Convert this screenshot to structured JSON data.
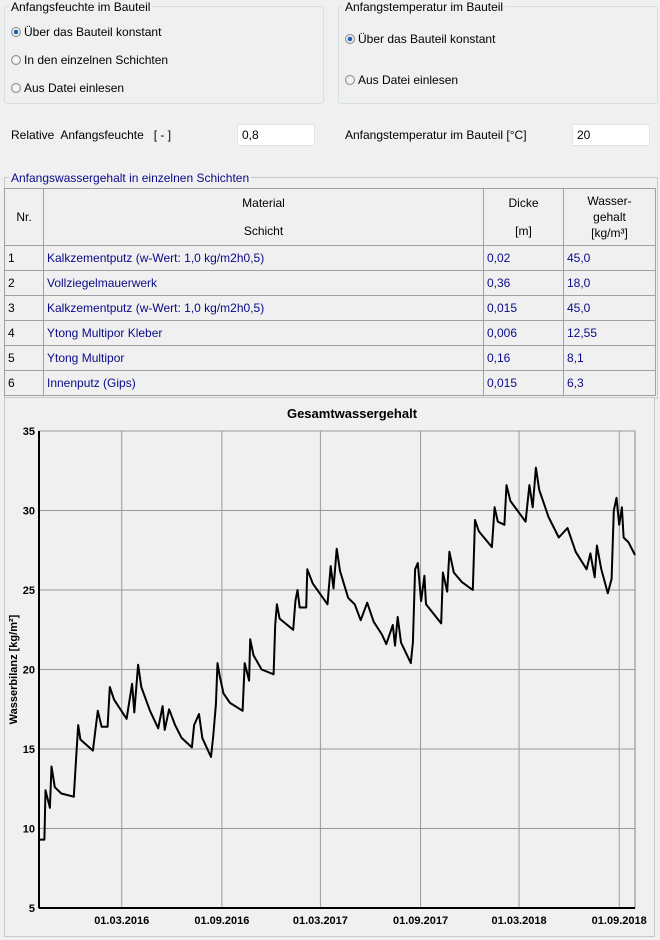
{
  "moisture_group": {
    "title": "Anfangsfeuchte im Bauteil",
    "options": [
      {
        "label": "Über das Bauteil konstant",
        "selected": true
      },
      {
        "label": "In den einzelnen Schichten",
        "selected": false
      },
      {
        "label": "Aus Datei einlesen",
        "selected": false
      }
    ]
  },
  "temperature_group": {
    "title": "Anfangstemperatur im Bauteil",
    "options": [
      {
        "label": "Über das Bauteil konstant",
        "selected": true
      },
      {
        "label": "Aus Datei einlesen",
        "selected": false
      }
    ]
  },
  "fields": {
    "rel_humidity_label": "Relative  Anfangsfeuchte   [ - ]",
    "rel_humidity_value": "0,8",
    "temp_label": "Anfangstemperatur im Bauteil [°C]",
    "temp_value": "20"
  },
  "layers": {
    "title": "Anfangswassergehalt in einzelnen Schichten",
    "headers": {
      "nr": "Nr.",
      "material_1": "Material",
      "material_2": "Schicht",
      "dicke_1": "Dicke",
      "dicke_2": "[m]",
      "wasser_1": "Wasser-",
      "wasser_2": "gehalt",
      "wasser_3": "[kg/m³]"
    },
    "rows": [
      {
        "nr": "1",
        "material": "Kalkzementputz (w-Wert: 1,0 kg/m2h0,5)",
        "dicke": "0,02",
        "wasser": "45,0"
      },
      {
        "nr": "2",
        "material": "Vollziegelmauerwerk",
        "dicke": "0,36",
        "wasser": "18,0"
      },
      {
        "nr": "3",
        "material": "Kalkzementputz (w-Wert: 1,0 kg/m2h0,5)",
        "dicke": "0,015",
        "wasser": "45,0"
      },
      {
        "nr": "4",
        "material": "Ytong Multipor Kleber",
        "dicke": "0,006",
        "wasser": "12,55"
      },
      {
        "nr": "5",
        "material": "Ytong Multipor",
        "dicke": "0,16",
        "wasser": "8,1"
      },
      {
        "nr": "6",
        "material": "Innenputz (Gips)",
        "dicke": "0,015",
        "wasser": "6,3"
      }
    ]
  },
  "chart_data": {
    "type": "line",
    "title": "Gesamtwassergehalt",
    "xlabel": "",
    "ylabel": "Wasserbilanz [kg/m²]",
    "xlim": [
      "2015-10-01",
      "2018-09-30"
    ],
    "ylim": [
      5,
      35
    ],
    "grid": true,
    "line_color": "#000000",
    "yticks": [
      "5",
      "10",
      "15",
      "20",
      "25",
      "30",
      "35"
    ],
    "xticks": [
      {
        "date": "2016-03-01",
        "label": "01.03.2016"
      },
      {
        "date": "2016-09-01",
        "label": "01.09.2016"
      },
      {
        "date": "2017-03-01",
        "label": "01.03.2017"
      },
      {
        "date": "2017-09-01",
        "label": "01.09.2017"
      },
      {
        "date": "2018-03-01",
        "label": "01.03.2018"
      },
      {
        "date": "2018-09-01",
        "label": "01.09.2018"
      }
    ],
    "x": [
      "2015-10-01",
      "2015-10-11",
      "2015-10-13",
      "2015-10-21",
      "2015-10-24",
      "2015-10-30",
      "2015-11-11",
      "2015-12-04",
      "2015-12-08",
      "2015-12-12",
      "2015-12-16",
      "2016-01-08",
      "2016-01-17",
      "2016-01-24",
      "2016-02-04",
      "2016-02-08",
      "2016-02-16",
      "2016-03-10",
      "2016-03-20",
      "2016-03-24",
      "2016-03-31",
      "2016-04-06",
      "2016-04-22",
      "2016-05-07",
      "2016-05-15",
      "2016-05-19",
      "2016-05-27",
      "2016-06-07",
      "2016-06-19",
      "2016-07-08",
      "2016-07-12",
      "2016-07-21",
      "2016-07-27",
      "2016-08-12",
      "2016-08-16",
      "2016-08-21",
      "2016-08-24",
      "2016-08-28",
      "2016-09-04",
      "2016-09-16",
      "2016-10-09",
      "2016-10-13",
      "2016-10-21",
      "2016-10-23",
      "2016-10-29",
      "2016-11-13",
      "2016-12-05",
      "2016-12-08",
      "2016-12-11",
      "2016-12-16",
      "2017-01-10",
      "2017-01-14",
      "2017-01-18",
      "2017-01-22",
      "2017-02-03",
      "2017-02-05",
      "2017-02-15",
      "2017-03-14",
      "2017-03-20",
      "2017-03-25",
      "2017-03-31",
      "2017-04-06",
      "2017-04-21",
      "2017-05-03",
      "2017-05-14",
      "2017-05-26",
      "2017-06-07",
      "2017-06-22",
      "2017-06-30",
      "2017-07-12",
      "2017-07-16",
      "2017-07-21",
      "2017-07-27",
      "2017-08-14",
      "2017-08-18",
      "2017-08-22",
      "2017-08-27",
      "2017-09-02",
      "2017-09-08",
      "2017-09-11",
      "2017-10-09",
      "2017-10-12",
      "2017-10-20",
      "2017-10-24",
      "2017-11-01",
      "2017-11-16",
      "2017-12-06",
      "2017-12-10",
      "2017-12-17",
      "2018-01-10",
      "2018-01-15",
      "2018-01-21",
      "2018-02-02",
      "2018-02-06",
      "2018-02-13",
      "2018-03-13",
      "2018-03-20",
      "2018-03-26",
      "2018-04-01",
      "2018-04-07",
      "2018-04-24",
      "2018-05-13",
      "2018-05-29",
      "2018-06-13",
      "2018-07-03",
      "2018-07-10",
      "2018-07-18",
      "2018-07-22",
      "2018-07-30",
      "2018-08-11",
      "2018-08-18",
      "2018-08-22",
      "2018-08-27",
      "2018-09-01",
      "2018-09-06",
      "2018-09-09",
      "2018-09-18",
      "2018-09-30"
    ],
    "y": [
      9.3,
      9.3,
      12.4,
      11.3,
      13.9,
      12.6,
      12.2,
      12.0,
      14.3,
      16.5,
      15.6,
      14.9,
      17.4,
      16.4,
      16.4,
      18.9,
      18.1,
      16.9,
      19.1,
      17.3,
      20.3,
      18.9,
      17.4,
      16.3,
      17.7,
      16.2,
      17.5,
      16.5,
      15.7,
      15.1,
      16.5,
      17.2,
      15.7,
      14.5,
      15.8,
      17.8,
      20.4,
      19.6,
      18.5,
      17.9,
      17.4,
      20.4,
      19.3,
      21.9,
      20.9,
      20.0,
      19.7,
      22.8,
      24.1,
      23.2,
      22.5,
      24.3,
      25.0,
      23.9,
      23.9,
      26.3,
      25.4,
      24.1,
      26.5,
      25.1,
      27.6,
      26.2,
      24.5,
      24.1,
      23.1,
      24.2,
      23.0,
      22.2,
      21.6,
      22.8,
      21.5,
      23.3,
      21.7,
      20.4,
      21.7,
      26.3,
      26.7,
      24.3,
      25.9,
      24.1,
      22.9,
      26.1,
      24.9,
      27.4,
      26.1,
      25.5,
      25.0,
      29.4,
      28.7,
      27.7,
      30.2,
      29.3,
      29.1,
      31.6,
      30.6,
      29.3,
      31.6,
      30.2,
      32.7,
      31.3,
      29.6,
      28.3,
      28.9,
      27.4,
      26.3,
      27.3,
      25.8,
      27.8,
      26.3,
      24.8,
      25.7,
      30.0,
      30.8,
      29.1,
      30.2,
      28.3,
      28.0,
      27.2
    ]
  }
}
